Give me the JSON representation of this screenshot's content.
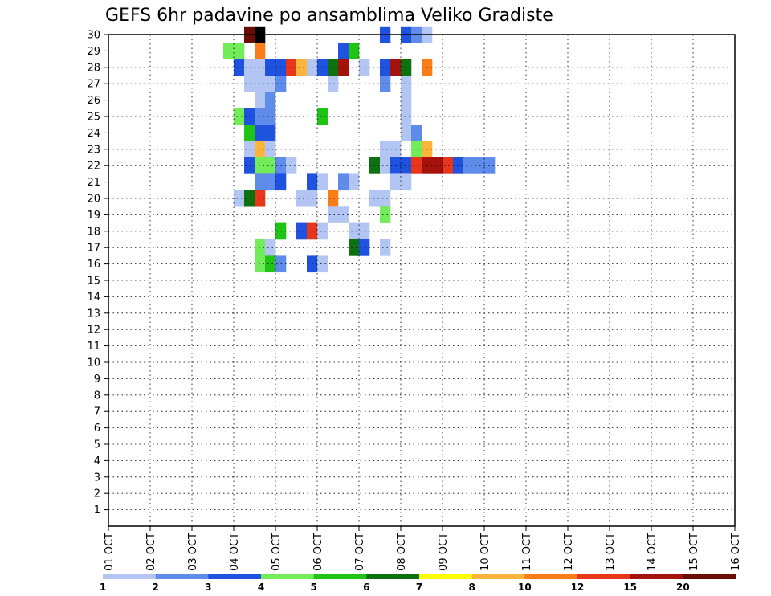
{
  "chart_data": {
    "type": "heatmap",
    "title": "GEFS 6hr padavine po ansamblima Veliko Gradiste",
    "x_tick_labels": [
      "01 OCT",
      "02 OCT",
      "03 OCT",
      "04 OCT",
      "05 OCT",
      "06 OCT",
      "07 OCT",
      "08 OCT",
      "09 OCT",
      "10 OCT",
      "11 OCT",
      "12 OCT",
      "13 OCT",
      "14 OCT",
      "15 OCT",
      "16 OCT"
    ],
    "y_tick_labels": [
      "1",
      "2",
      "3",
      "4",
      "5",
      "6",
      "7",
      "8",
      "9",
      "10",
      "11",
      "12",
      "13",
      "14",
      "15",
      "16",
      "17",
      "18",
      "19",
      "20",
      "21",
      "22",
      "23",
      "24",
      "25",
      "26",
      "27",
      "28",
      "29",
      "30"
    ],
    "y_range": [
      0,
      30
    ],
    "x_step_hours": 6,
    "grid": true,
    "colorbar": {
      "labels": [
        "1",
        "2",
        "3",
        "4",
        "5",
        "6",
        "7",
        "8",
        "10",
        "12",
        "15",
        "20"
      ],
      "colors": [
        "#b3c6f3",
        "#5f8cea",
        "#1e52df",
        "#72ec58",
        "#20c414",
        "#0e7110",
        "#ffff00",
        "#fdb43b",
        "#fb7d18",
        "#e7361a",
        "#a5120b",
        "#690d06"
      ]
    },
    "cells": [
      [
        13,
        30,
        11
      ],
      [
        14,
        30,
        12
      ],
      [
        26,
        30,
        2
      ],
      [
        28,
        30,
        2
      ],
      [
        29,
        30,
        1
      ],
      [
        30,
        30,
        0
      ],
      [
        11,
        29,
        3
      ],
      [
        12,
        29,
        3
      ],
      [
        14,
        29,
        8
      ],
      [
        22,
        29,
        2
      ],
      [
        23,
        29,
        4
      ],
      [
        12,
        28,
        2
      ],
      [
        13,
        28,
        0
      ],
      [
        14,
        28,
        0
      ],
      [
        15,
        28,
        2
      ],
      [
        16,
        28,
        2
      ],
      [
        17,
        28,
        9
      ],
      [
        18,
        28,
        7
      ],
      [
        19,
        28,
        0
      ],
      [
        20,
        28,
        2
      ],
      [
        21,
        28,
        5
      ],
      [
        22,
        28,
        10
      ],
      [
        26,
        28,
        2
      ],
      [
        27,
        28,
        10
      ],
      [
        28,
        28,
        5
      ],
      [
        24,
        28,
        0
      ],
      [
        30,
        28,
        8
      ],
      [
        13,
        27,
        0
      ],
      [
        14,
        27,
        0
      ],
      [
        15,
        27,
        0
      ],
      [
        16,
        27,
        1
      ],
      [
        21,
        27,
        0
      ],
      [
        26,
        27,
        1
      ],
      [
        28,
        27,
        0
      ],
      [
        14,
        26,
        0
      ],
      [
        15,
        26,
        1
      ],
      [
        28,
        26,
        0
      ],
      [
        12,
        25,
        3
      ],
      [
        13,
        25,
        2
      ],
      [
        14,
        25,
        1
      ],
      [
        15,
        25,
        1
      ],
      [
        20,
        25,
        4
      ],
      [
        28,
        25,
        0
      ],
      [
        13,
        24,
        4
      ],
      [
        14,
        24,
        2
      ],
      [
        15,
        24,
        2
      ],
      [
        28,
        24,
        0
      ],
      [
        29,
        24,
        1
      ],
      [
        13,
        23,
        0
      ],
      [
        14,
        23,
        7
      ],
      [
        15,
        23,
        0
      ],
      [
        26,
        23,
        0
      ],
      [
        27,
        23,
        0
      ],
      [
        29,
        23,
        3
      ],
      [
        30,
        23,
        7
      ],
      [
        13,
        22,
        2
      ],
      [
        14,
        22,
        3
      ],
      [
        15,
        22,
        3
      ],
      [
        16,
        22,
        1
      ],
      [
        17,
        22,
        0
      ],
      [
        25,
        22,
        5
      ],
      [
        26,
        22,
        0
      ],
      [
        27,
        22,
        2
      ],
      [
        28,
        22,
        2
      ],
      [
        29,
        22,
        9
      ],
      [
        30,
        22,
        10
      ],
      [
        31,
        22,
        10
      ],
      [
        32,
        22,
        9
      ],
      [
        33,
        22,
        2
      ],
      [
        34,
        22,
        1
      ],
      [
        35,
        22,
        1
      ],
      [
        36,
        22,
        1
      ],
      [
        14,
        21,
        1
      ],
      [
        15,
        21,
        1
      ],
      [
        16,
        21,
        2
      ],
      [
        19,
        21,
        2
      ],
      [
        20,
        21,
        0
      ],
      [
        22,
        21,
        1
      ],
      [
        23,
        21,
        0
      ],
      [
        27,
        21,
        0
      ],
      [
        28,
        21,
        0
      ],
      [
        12,
        20,
        0
      ],
      [
        13,
        20,
        5
      ],
      [
        14,
        20,
        9
      ],
      [
        18,
        20,
        0
      ],
      [
        19,
        20,
        0
      ],
      [
        21,
        20,
        8
      ],
      [
        25,
        20,
        0
      ],
      [
        26,
        20,
        0
      ],
      [
        26,
        19,
        3
      ],
      [
        21,
        19,
        0
      ],
      [
        22,
        19,
        0
      ],
      [
        16,
        18,
        4
      ],
      [
        18,
        18,
        2
      ],
      [
        19,
        18,
        9
      ],
      [
        20,
        18,
        0
      ],
      [
        23,
        18,
        0
      ],
      [
        24,
        18,
        0
      ],
      [
        14,
        17,
        3
      ],
      [
        15,
        17,
        0
      ],
      [
        23,
        17,
        5
      ],
      [
        24,
        17,
        2
      ],
      [
        26,
        17,
        0
      ],
      [
        14,
        16,
        3
      ],
      [
        15,
        16,
        4
      ],
      [
        16,
        16,
        1
      ],
      [
        19,
        16,
        2
      ],
      [
        20,
        16,
        0
      ]
    ]
  }
}
